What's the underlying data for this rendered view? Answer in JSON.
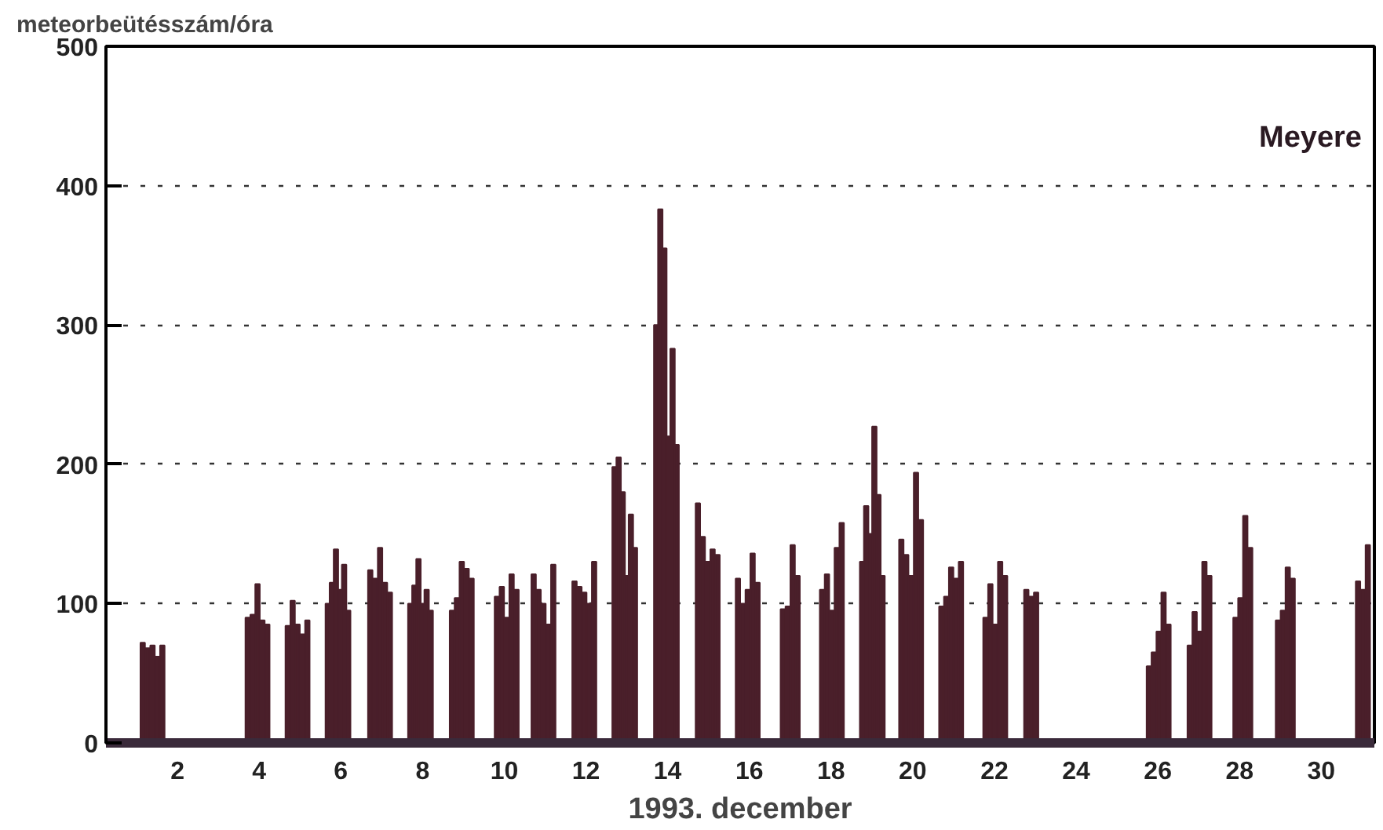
{
  "chart_data": {
    "type": "bar",
    "title": "Meyere",
    "ylabel": "meteorbeütésszám/óra",
    "xlabel": "1993. december",
    "x": [
      1.15,
      1.27,
      1.39,
      1.51,
      1.63,
      3.72,
      3.84,
      3.96,
      4.08,
      4.2,
      4.7,
      4.82,
      4.94,
      5.06,
      5.18,
      5.68,
      5.78,
      5.88,
      5.98,
      6.08,
      6.18,
      6.72,
      6.84,
      6.96,
      7.08,
      7.2,
      7.7,
      7.8,
      7.9,
      8.0,
      8.1,
      8.2,
      8.72,
      8.84,
      8.96,
      9.08,
      9.2,
      9.82,
      9.94,
      10.06,
      10.18,
      10.3,
      10.72,
      10.84,
      10.96,
      11.08,
      11.2,
      11.72,
      11.84,
      11.96,
      12.08,
      12.2,
      12.7,
      12.8,
      12.9,
      13.0,
      13.1,
      13.2,
      13.72,
      13.82,
      13.92,
      14.02,
      14.12,
      14.22,
      14.74,
      14.86,
      14.98,
      15.1,
      15.22,
      15.72,
      15.84,
      15.96,
      16.08,
      16.2,
      16.82,
      16.94,
      17.06,
      17.18,
      17.78,
      17.9,
      18.02,
      18.14,
      18.26,
      18.76,
      18.86,
      18.96,
      19.06,
      19.16,
      19.26,
      19.72,
      19.84,
      19.96,
      20.08,
      20.2,
      20.7,
      20.82,
      20.94,
      21.06,
      21.18,
      21.78,
      21.9,
      22.02,
      22.14,
      22.26,
      22.78,
      22.9,
      23.02,
      25.78,
      25.9,
      26.02,
      26.14,
      26.26,
      26.78,
      26.9,
      27.02,
      27.14,
      27.26,
      27.9,
      28.02,
      28.14,
      28.26,
      28.94,
      29.06,
      29.18,
      29.3,
      30.9,
      31.02,
      31.14
    ],
    "values": [
      72,
      68,
      70,
      62,
      70,
      90,
      92,
      114,
      88,
      85,
      84,
      102,
      85,
      78,
      88,
      100,
      115,
      139,
      110,
      128,
      95,
      124,
      118,
      140,
      115,
      108,
      100,
      113,
      132,
      100,
      110,
      95,
      95,
      104,
      130,
      125,
      118,
      105,
      112,
      90,
      121,
      110,
      121,
      110,
      100,
      85,
      128,
      116,
      112,
      108,
      100,
      130,
      198,
      205,
      180,
      120,
      164,
      140,
      300,
      383,
      355,
      220,
      283,
      214,
      172,
      148,
      130,
      139,
      135,
      118,
      100,
      110,
      136,
      115,
      96,
      98,
      142,
      120,
      110,
      121,
      95,
      140,
      158,
      130,
      170,
      150,
      227,
      178,
      120,
      146,
      135,
      120,
      194,
      160,
      98,
      105,
      126,
      118,
      130,
      90,
      114,
      85,
      130,
      120,
      110,
      105,
      108,
      55,
      65,
      80,
      108,
      85,
      70,
      94,
      80,
      130,
      120,
      90,
      104,
      163,
      140,
      88,
      95,
      126,
      118,
      116,
      110,
      142
    ],
    "color": "#4a1f2a",
    "xlim": [
      0.25,
      31.3
    ],
    "xticks": [
      2,
      4,
      6,
      8,
      10,
      12,
      14,
      16,
      18,
      20,
      22,
      24,
      26,
      28,
      30
    ],
    "ylim": [
      0,
      500
    ],
    "yticks": [
      0,
      100,
      200,
      300,
      400,
      500
    ],
    "grid": "y"
  }
}
